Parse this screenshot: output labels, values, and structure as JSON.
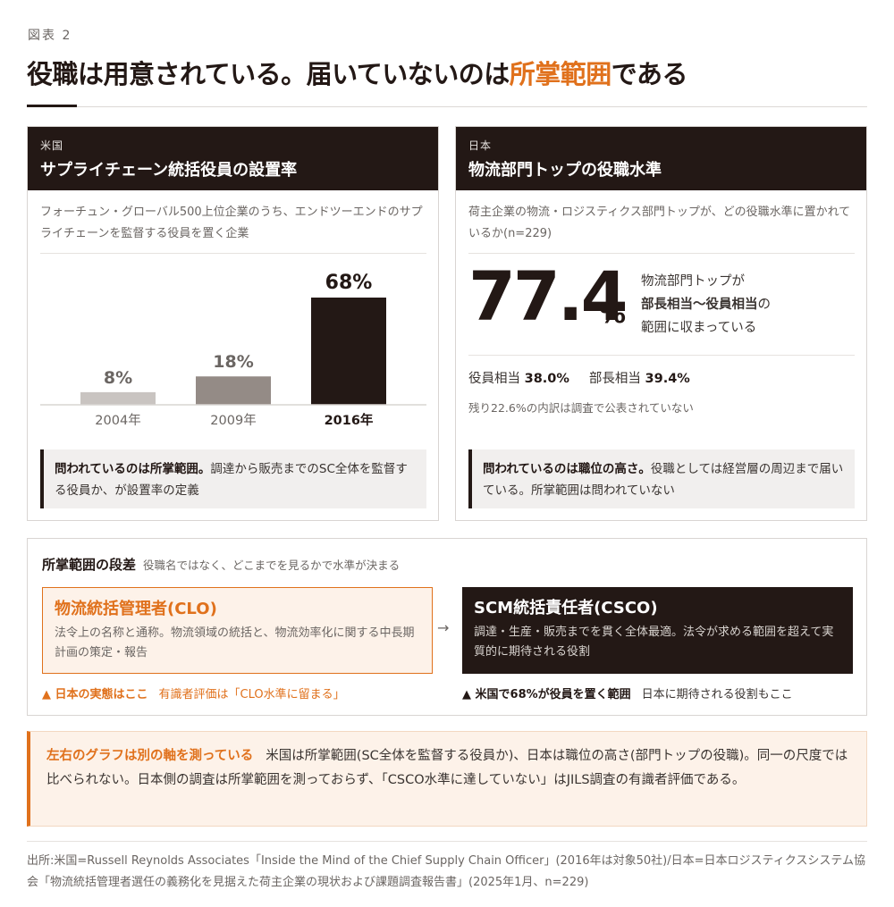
{
  "header": {
    "figure_label": "図表 2",
    "title_pre": "役職は用意されている。届いていないのは",
    "title_accent": "所掌範囲",
    "title_post": "である"
  },
  "us_panel": {
    "kicker": "米国",
    "title": "サプライチェーン統括役員の設置率",
    "description": "フォーチュン・グローバル500上位企業のうち、エンドツーエンドのサプライチェーンを監督する役員を置く企業",
    "note_bold": "問われているのは所掌範囲。",
    "note_text": "調達から販売までのSC全体を監督する役員か、が設置率の定義"
  },
  "chart_data": {
    "type": "bar",
    "categories": [
      "2004年",
      "2009年",
      "2016年"
    ],
    "values": [
      8,
      18,
      68
    ],
    "value_labels": [
      "8%",
      "18%",
      "68%"
    ],
    "highlight_index": 2,
    "ylim": [
      0,
      68
    ],
    "colors": [
      "#c9c4c1",
      "#948b86",
      "#231815"
    ],
    "grid": false,
    "legend": "none"
  },
  "jp_panel": {
    "kicker": "日本",
    "title": "物流部門トップの役職水準",
    "description": "荷主企業の物流・ロジスティクス部門トップが、どの役職水準に置かれているか(n=229)",
    "big_value": "77.4",
    "big_unit": "%",
    "desc_line1": "物流部門トップが",
    "desc_bold": "部長相当〜役員相当",
    "desc_line2_suffix": "の",
    "desc_line3": "範囲に収まっている",
    "officer_label": "役員相当",
    "officer_value": "38.0%",
    "manager_label": "部長相当",
    "manager_value": "39.4%",
    "remainder": "残り22.6%の内訳は調査で公表されていない",
    "note_bold": "問われているのは職位の高さ。",
    "note_text": "役職としては経営層の周辺まで届いている。所掌範囲は問われていない"
  },
  "scope": {
    "title": "所掌範囲の段差",
    "subtitle": "役職名ではなく、どこまでを見るかで水準が決まる",
    "clo_title": "物流統括管理者(CLO)",
    "clo_desc": "法令上の名称と通称。物流領域の統括と、物流効率化に関する中長期計画の策定・報告",
    "arrow": "→",
    "csco_title": "SCM統括責任者(CSCO)",
    "csco_desc": "調達・生産・販売までを貫く全体最適。法令が求める範囲を超えて実質的に期待される役割",
    "clo_caption_bold": "▲ 日本の実態はここ",
    "clo_caption_text": "有識者評価は「CLO水準に留まる」",
    "csco_caption_bold": "▲ 米国で68%が役員を置く範囲",
    "csco_caption_text": "日本に期待される役割もここ"
  },
  "callout": {
    "lead": "左右のグラフは別の軸を測っている",
    "text": "米国は所掌範囲(SC全体を監督する役員か)、日本は職位の高さ(部門トップの役職)。同一の尺度では比べられない。日本側の調査は所掌範囲を測っておらず、「CSCO水準に達していない」はJILS調査の有識者評価である。"
  },
  "source": {
    "text": "出所:米国=Russell Reynolds Associates「Inside the Mind of the Chief Supply Chain Officer」(2016年は対象50社)/日本=日本ロジスティクスシステム協会「物流統括管理者選任の義務化を見据えた荷主企業の現状および課題調査報告書」(2025年1月、n=229)"
  }
}
